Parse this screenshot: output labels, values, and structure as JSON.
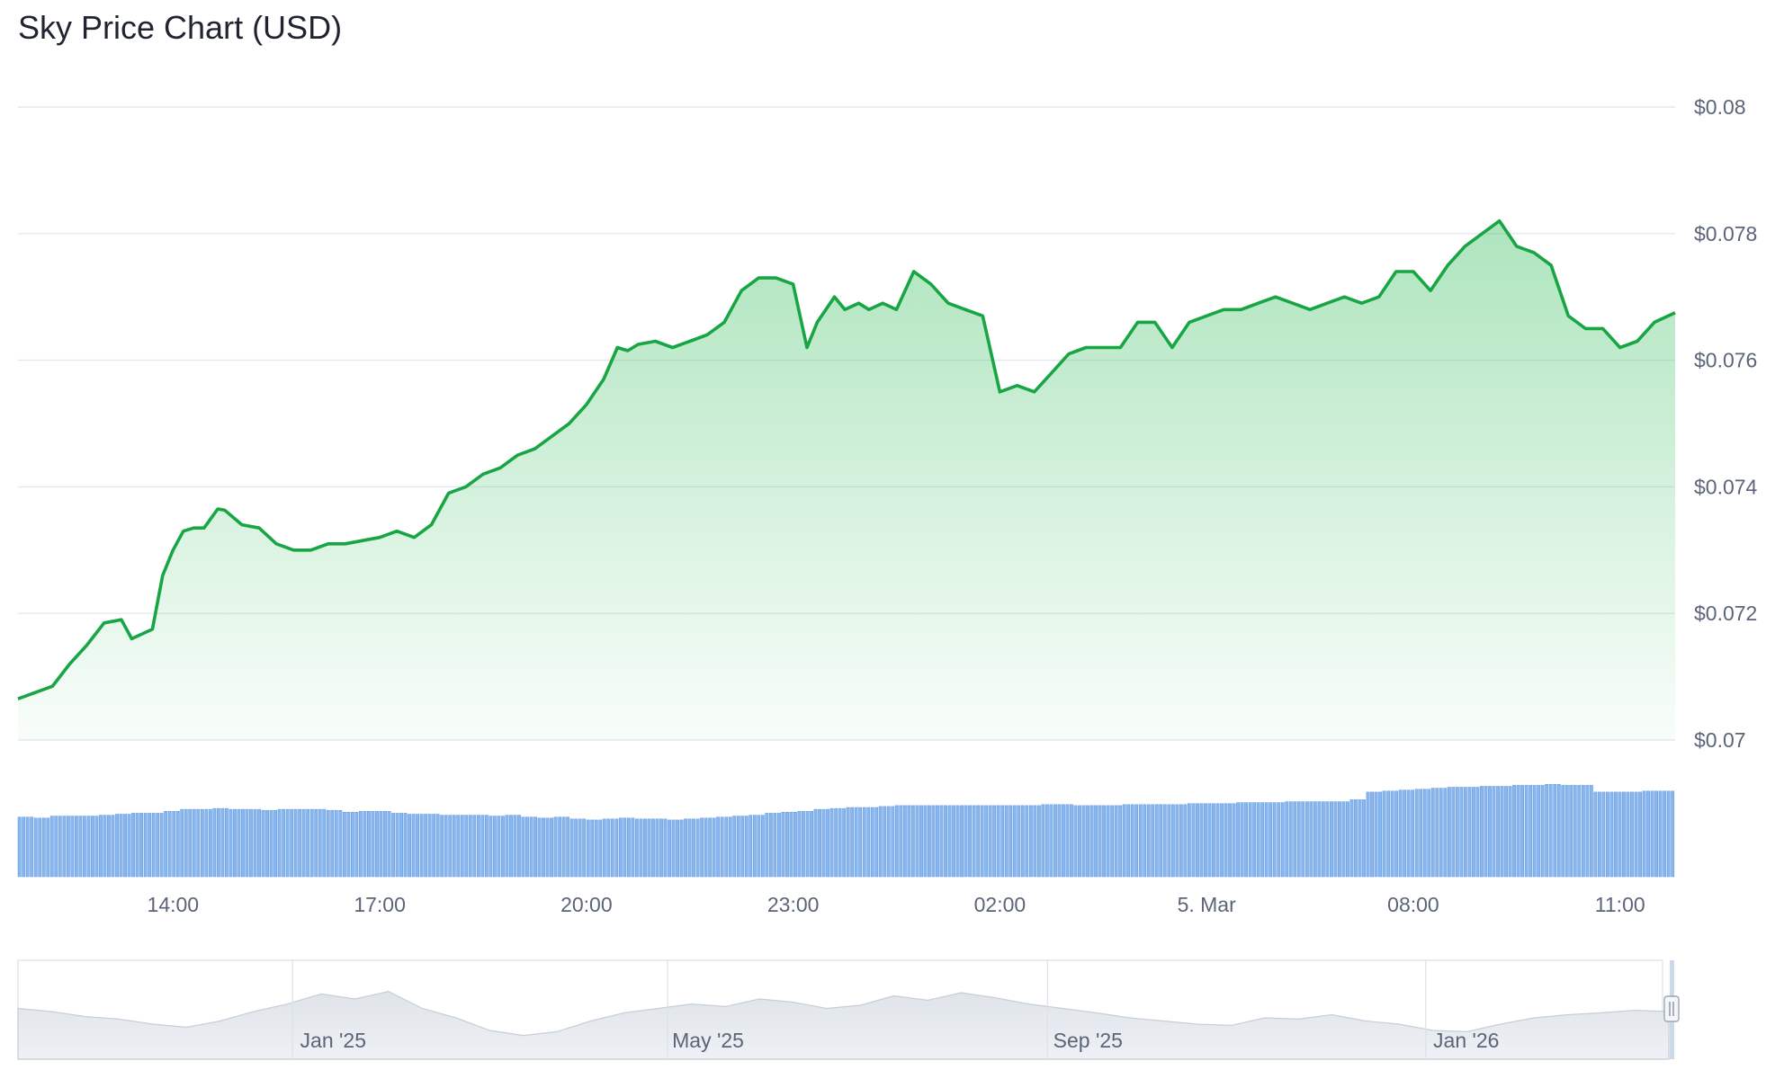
{
  "title": "Sky Price Chart (USD)",
  "colors": {
    "price_line": "#18a544",
    "price_fill": "#3cc062",
    "volume_bar": "#8ab6ee",
    "volume_bar_stroke": "#5a95e0",
    "grid": "#e4e8ee",
    "navigator_fill": "#e8ecf1",
    "navigator_line": "#c7ced8"
  },
  "chart_data": {
    "type": "area",
    "title": "Sky Price Chart (USD)",
    "xlabel": "",
    "ylabel": "",
    "ylim": [
      0.07,
      0.08
    ],
    "y_ticks": [
      "$0.08",
      "$0.078",
      "$0.076",
      "$0.074",
      "$0.072",
      "$0.07"
    ],
    "y_tick_values": [
      0.08,
      0.078,
      0.076,
      0.074,
      0.072,
      0.07
    ],
    "x_range_hours": [
      11.75,
      35.8
    ],
    "x_ticks": [
      "14:00",
      "17:00",
      "20:00",
      "23:00",
      "02:00",
      "5. Mar",
      "08:00",
      "11:00"
    ],
    "x_tick_values": [
      14,
      17,
      20,
      23,
      26,
      29,
      32,
      35
    ],
    "x_hours": [
      11.75,
      12.25,
      12.5,
      12.75,
      13.0,
      13.25,
      13.4,
      13.7,
      13.85,
      14.0,
      14.15,
      14.3,
      14.45,
      14.65,
      14.75,
      15.0,
      15.25,
      15.5,
      15.75,
      16.0,
      16.25,
      16.5,
      16.75,
      17.0,
      17.25,
      17.5,
      17.75,
      18.0,
      18.25,
      18.5,
      18.75,
      19.0,
      19.25,
      19.5,
      19.75,
      20.0,
      20.25,
      20.45,
      20.6,
      20.75,
      21.0,
      21.25,
      21.5,
      21.75,
      22.0,
      22.25,
      22.5,
      22.75,
      23.0,
      23.2,
      23.35,
      23.6,
      23.75,
      23.95,
      24.1,
      24.3,
      24.5,
      24.75,
      25.0,
      25.25,
      25.5,
      25.75,
      26.0,
      26.25,
      26.5,
      26.75,
      27.0,
      27.25,
      27.5,
      27.75,
      28.0,
      28.25,
      28.5,
      28.75,
      29.0,
      29.25,
      29.5,
      29.75,
      30.0,
      30.25,
      30.5,
      30.75,
      31.0,
      31.25,
      31.5,
      31.75,
      32.0,
      32.25,
      32.5,
      32.75,
      33.0,
      33.25,
      33.5,
      33.75,
      34.0,
      34.25,
      34.5,
      34.75,
      35.0,
      35.25,
      35.5,
      35.8
    ],
    "series": [
      {
        "values": [
          0.07065,
          0.07085,
          0.0712,
          0.0715,
          0.07185,
          0.0719,
          0.0716,
          0.07175,
          0.0726,
          0.073,
          0.0733,
          0.07335,
          0.07335,
          0.07365,
          0.07363,
          0.0734,
          0.07335,
          0.0731,
          0.073,
          0.073,
          0.0731,
          0.0731,
          0.07315,
          0.0732,
          0.0733,
          0.0732,
          0.0734,
          0.0739,
          0.074,
          0.0742,
          0.0743,
          0.0745,
          0.0746,
          0.0748,
          0.075,
          0.0753,
          0.0757,
          0.0762,
          0.07615,
          0.07625,
          0.0763,
          0.0762,
          0.0763,
          0.0764,
          0.0766,
          0.0771,
          0.0773,
          0.0773,
          0.0772,
          0.0762,
          0.0766,
          0.077,
          0.0768,
          0.0769,
          0.0768,
          0.0769,
          0.0768,
          0.0774,
          0.0772,
          0.0769,
          0.0768,
          0.0767,
          0.0755,
          0.0756,
          0.0755,
          0.0758,
          0.0761,
          0.0762,
          0.0762,
          0.0762,
          0.0766,
          0.0766,
          0.0762,
          0.0766,
          0.0767,
          0.0768,
          0.0768,
          0.0769,
          0.077,
          0.0769,
          0.0768,
          0.0769,
          0.077,
          0.0769,
          0.077,
          0.0774,
          0.0774,
          0.0771,
          0.0775,
          0.0778,
          0.078,
          0.0782,
          0.0778,
          0.0777,
          0.0775,
          0.0767,
          0.0765,
          0.0765,
          0.0762,
          0.0763,
          0.0766,
          0.07675
        ]
      }
    ],
    "volume_note": "relative volume level 0-1 per bar",
    "volume": [
      0.62,
      0.61,
      0.63,
      0.63,
      0.63,
      0.64,
      0.65,
      0.66,
      0.66,
      0.68,
      0.7,
      0.7,
      0.71,
      0.7,
      0.7,
      0.69,
      0.7,
      0.7,
      0.7,
      0.69,
      0.67,
      0.68,
      0.68,
      0.66,
      0.65,
      0.65,
      0.64,
      0.64,
      0.64,
      0.63,
      0.64,
      0.62,
      0.61,
      0.62,
      0.6,
      0.59,
      0.6,
      0.61,
      0.6,
      0.6,
      0.59,
      0.6,
      0.61,
      0.62,
      0.63,
      0.64,
      0.66,
      0.67,
      0.68,
      0.7,
      0.71,
      0.72,
      0.72,
      0.73,
      0.74,
      0.74,
      0.74,
      0.74,
      0.74,
      0.74,
      0.74,
      0.74,
      0.74,
      0.75,
      0.75,
      0.74,
      0.74,
      0.74,
      0.75,
      0.75,
      0.75,
      0.75,
      0.76,
      0.76,
      0.76,
      0.77,
      0.77,
      0.77,
      0.78,
      0.78,
      0.78,
      0.78,
      0.8,
      0.88,
      0.89,
      0.9,
      0.91,
      0.92,
      0.93,
      0.93,
      0.94,
      0.94,
      0.95,
      0.95,
      0.96,
      0.95,
      0.95,
      0.88,
      0.88,
      0.88,
      0.89,
      0.89
    ],
    "navigator": {
      "x_ticks": [
        "Jan '25",
        "May '25",
        "Sep '25",
        "Jan '26"
      ],
      "values": [
        0.55,
        0.5,
        0.42,
        0.38,
        0.3,
        0.25,
        0.35,
        0.5,
        0.62,
        0.78,
        0.7,
        0.82,
        0.55,
        0.4,
        0.2,
        0.12,
        0.18,
        0.35,
        0.48,
        0.55,
        0.62,
        0.58,
        0.7,
        0.65,
        0.55,
        0.6,
        0.75,
        0.68,
        0.8,
        0.72,
        0.62,
        0.55,
        0.48,
        0.4,
        0.35,
        0.3,
        0.28,
        0.4,
        0.38,
        0.45,
        0.35,
        0.3,
        0.2,
        0.18,
        0.3,
        0.4,
        0.45,
        0.48,
        0.52,
        0.5
      ]
    }
  }
}
